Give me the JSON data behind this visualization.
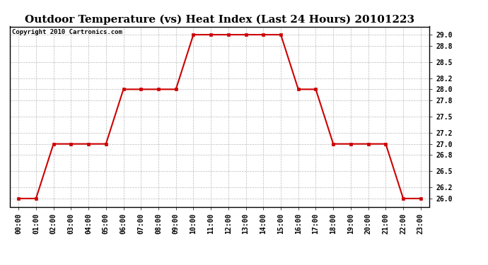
{
  "title": "Outdoor Temperature (vs) Heat Index (Last 24 Hours) 20101223",
  "copyright_text": "Copyright 2010 Cartronics.com",
  "x_labels": [
    "00:00",
    "01:00",
    "02:00",
    "03:00",
    "04:00",
    "05:00",
    "06:00",
    "07:00",
    "08:00",
    "09:00",
    "10:00",
    "11:00",
    "12:00",
    "13:00",
    "14:00",
    "15:00",
    "16:00",
    "17:00",
    "18:00",
    "19:00",
    "20:00",
    "21:00",
    "22:00",
    "23:00"
  ],
  "y_values": [
    26.0,
    26.0,
    27.0,
    27.0,
    27.0,
    27.0,
    28.0,
    28.0,
    28.0,
    28.0,
    29.0,
    29.0,
    29.0,
    29.0,
    29.0,
    29.0,
    28.0,
    28.0,
    27.0,
    27.0,
    27.0,
    27.0,
    26.0,
    26.0
  ],
  "line_color": "#cc0000",
  "marker": "s",
  "marker_size": 3,
  "marker_facecolor": "#cc0000",
  "ylim_min": 25.85,
  "ylim_max": 29.15,
  "yticks": [
    26.0,
    26.2,
    26.5,
    26.8,
    27.0,
    27.2,
    27.5,
    27.8,
    28.0,
    28.2,
    28.5,
    28.8,
    29.0
  ],
  "background_color": "#ffffff",
  "plot_bg_color": "#ffffff",
  "grid_color": "#bbbbbb",
  "title_fontsize": 11,
  "tick_fontsize": 7,
  "copyright_fontsize": 6.5
}
